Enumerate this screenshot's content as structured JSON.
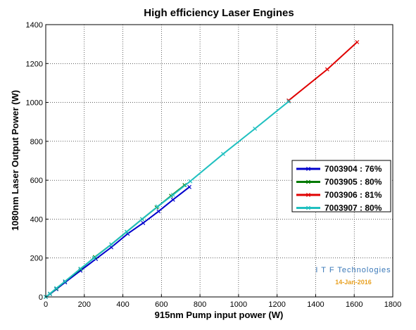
{
  "chart_data": {
    "type": "line",
    "title": "High efficiency Laser Engines",
    "xlabel": "915nm Pump input power (W)",
    "ylabel": "1080nm Laser Output Power (W)",
    "xlim": [
      0,
      1800
    ],
    "ylim": [
      0,
      1400
    ],
    "xticks": [
      0,
      200,
      400,
      600,
      800,
      1000,
      1200,
      1400,
      1600,
      1800
    ],
    "yticks": [
      0,
      200,
      400,
      600,
      800,
      1000,
      1200,
      1400
    ],
    "grid": true,
    "legend_position": "right",
    "series": [
      {
        "name": "7003904 : 76%",
        "color": "#0000cc",
        "x": [
          0,
          22,
          55,
          100,
          180,
          260,
          340,
          425,
          505,
          585,
          660,
          745
        ],
        "y": [
          0,
          15,
          40,
          75,
          135,
          195,
          255,
          325,
          380,
          440,
          500,
          565
        ]
      },
      {
        "name": "7003905 : 80%",
        "color": "#007a00",
        "x": [
          0,
          22,
          55,
          100,
          180,
          255,
          340,
          420,
          500,
          575,
          650,
          720
        ],
        "y": [
          0,
          16,
          43,
          80,
          143,
          205,
          270,
          335,
          400,
          460,
          520,
          575
        ]
      },
      {
        "name": "7003906 : 81%",
        "color": "#e00000",
        "x": [
          1260,
          1460,
          1615
        ],
        "y": [
          1010,
          1170,
          1310
        ]
      },
      {
        "name": "7003907 : 80%",
        "color": "#20c0c0",
        "x": [
          0,
          22,
          55,
          100,
          180,
          250,
          340,
          420,
          500,
          580,
          660,
          750,
          920,
          1085,
          1260
        ],
        "y": [
          0,
          17,
          45,
          80,
          145,
          200,
          270,
          335,
          400,
          465,
          525,
          595,
          735,
          865,
          1005
        ]
      }
    ],
    "annotations": {
      "company": "I T F  Technologies",
      "date": "14-Jan-2016"
    }
  }
}
